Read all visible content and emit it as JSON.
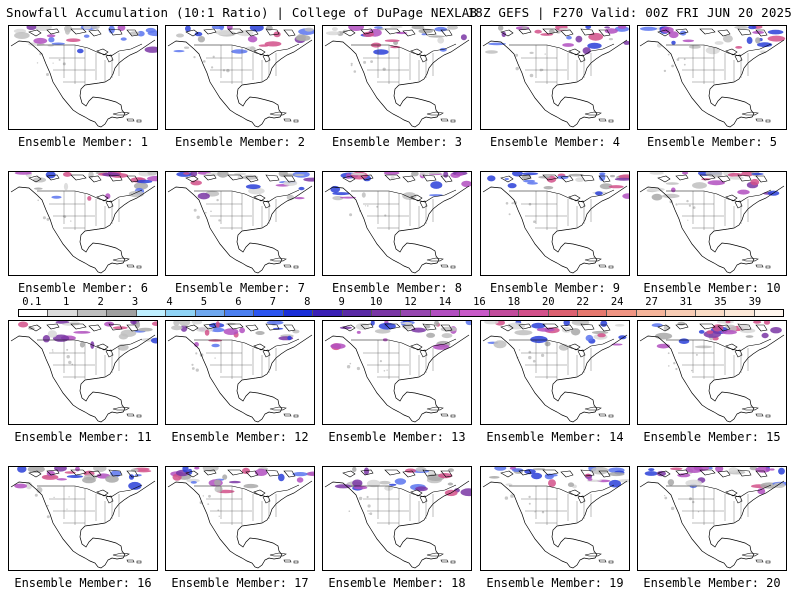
{
  "header": {
    "title": "Snowfall Accumulation (10:1 Ratio) | College of DuPage NEXLAB",
    "run_info": "18Z GEFS | F270 Valid: 00Z FRI JUN 20 2025"
  },
  "members": [
    {
      "label": "Ensemble Member: 1"
    },
    {
      "label": "Ensemble Member: 2"
    },
    {
      "label": "Ensemble Member: 3"
    },
    {
      "label": "Ensemble Member: 4"
    },
    {
      "label": "Ensemble Member: 5"
    },
    {
      "label": "Ensemble Member: 6"
    },
    {
      "label": "Ensemble Member: 7"
    },
    {
      "label": "Ensemble Member: 8"
    },
    {
      "label": "Ensemble Member: 9"
    },
    {
      "label": "Ensemble Member: 10"
    },
    {
      "label": "Ensemble Member: 11"
    },
    {
      "label": "Ensemble Member: 12"
    },
    {
      "label": "Ensemble Member: 13"
    },
    {
      "label": "Ensemble Member: 14"
    },
    {
      "label": "Ensemble Member: 15"
    },
    {
      "label": "Ensemble Member: 16"
    },
    {
      "label": "Ensemble Member: 17"
    },
    {
      "label": "Ensemble Member: 18"
    },
    {
      "label": "Ensemble Member: 19"
    },
    {
      "label": "Ensemble Member: 20"
    }
  ],
  "legend": {
    "labels": [
      "0.1",
      "1",
      "2",
      "3",
      "4",
      "5",
      "6",
      "7",
      "8",
      "9",
      "10",
      "12",
      "14",
      "16",
      "18",
      "20",
      "22",
      "24",
      "27",
      "31",
      "35",
      "39"
    ],
    "colors": [
      "#ffffff",
      "#dcdcdc",
      "#bebebe",
      "#a0a0a0",
      "#bfefff",
      "#8fd3f5",
      "#6fa8ef",
      "#4b7ff0",
      "#2b55f0",
      "#1a2ed8",
      "#3a1fb5",
      "#5a2aa5",
      "#7a36a5",
      "#9646b0",
      "#b24fc0",
      "#c85ac8",
      "#c24c9c",
      "#d2508a",
      "#dc6070",
      "#e6786e",
      "#f09482",
      "#f5b49a",
      "#f8ccb4",
      "#fadcc6",
      "#fce8d8",
      "#fff6ee"
    ]
  }
}
